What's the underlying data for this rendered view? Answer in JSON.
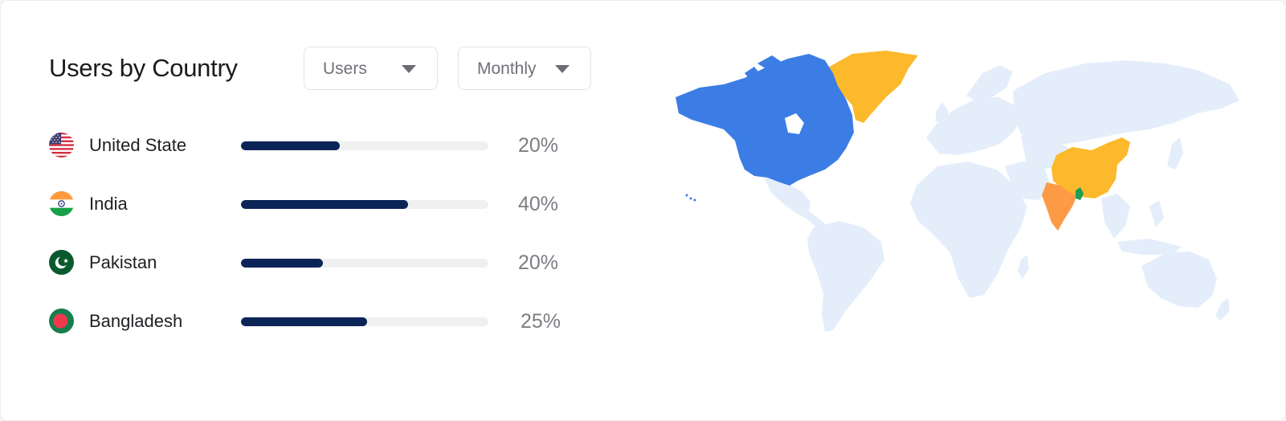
{
  "widget": {
    "title": "Users by Country",
    "metric_dropdown": {
      "selected": "Users"
    },
    "period_dropdown": {
      "selected": "Monthly"
    }
  },
  "countries": [
    {
      "name": "United State",
      "percent_label": "20%",
      "bar_fill_fraction": 0.4,
      "flag_icon": "us-flag-icon"
    },
    {
      "name": "India",
      "percent_label": "40%",
      "bar_fill_fraction": 0.675,
      "flag_icon": "india-flag-icon"
    },
    {
      "name": "Pakistan",
      "percent_label": "20%",
      "bar_fill_fraction": 0.33,
      "flag_icon": "pakistan-flag-icon"
    },
    {
      "name": "Bangladesh",
      "percent_label": "25%",
      "bar_fill_fraction": 0.51,
      "flag_icon": "bangladesh-flag-icon"
    }
  ],
  "colors": {
    "bar_fill": "#0c2558",
    "bar_track": "#f0f0f1",
    "map_base": "#e4eefb",
    "map_north_america": "#3b7de4",
    "map_greenland_china": "#fcb92c",
    "map_india": "#fd9a45",
    "map_bangladesh": "#1f9d55"
  }
}
